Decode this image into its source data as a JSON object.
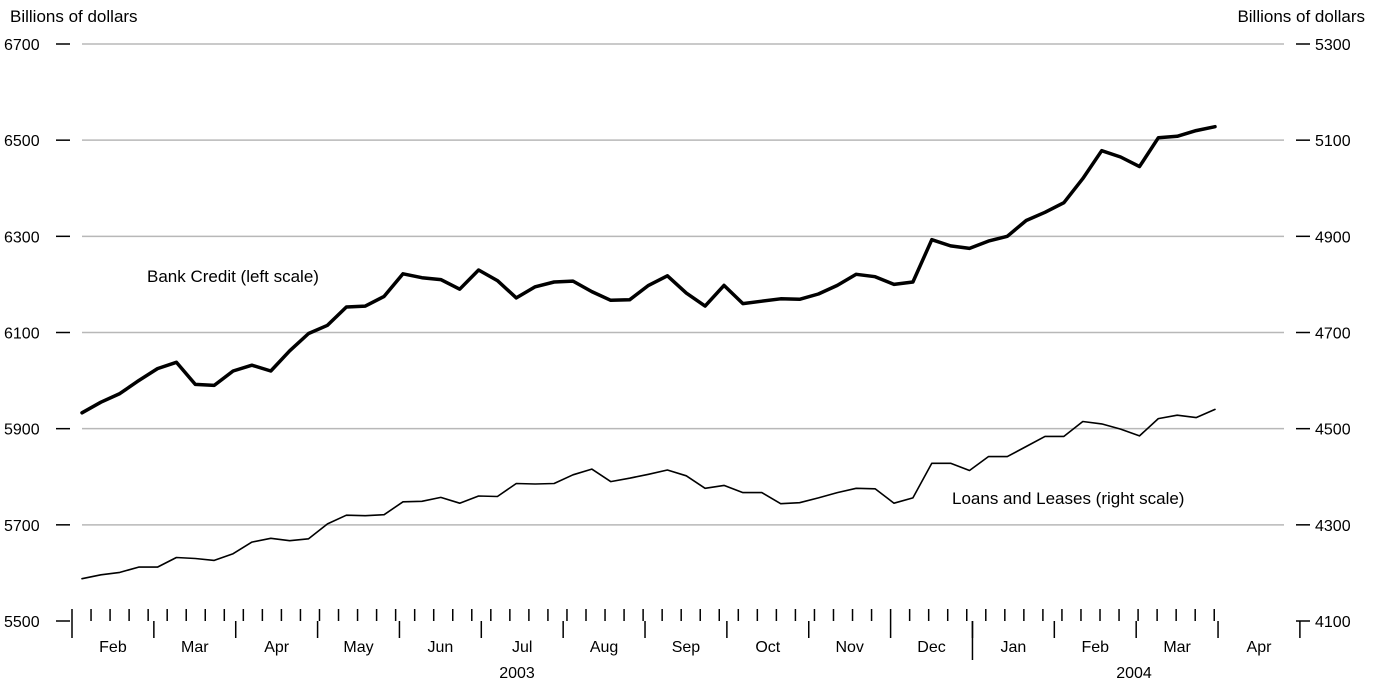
{
  "chart_data": {
    "type": "line",
    "left_axis": {
      "label": "Billions of dollars",
      "ylim": [
        5500,
        6700
      ],
      "ticks": [
        5500,
        5700,
        5900,
        6100,
        6300,
        6500,
        6700
      ]
    },
    "right_axis": {
      "label": "Billions of dollars",
      "ylim": [
        4100,
        5300
      ],
      "ticks": [
        4100,
        4300,
        4500,
        4700,
        4900,
        5100,
        5300
      ]
    },
    "grid": true,
    "months": [
      {
        "label": "Feb",
        "year": "2003"
      },
      {
        "label": "Mar",
        "year": "2003"
      },
      {
        "label": "Apr",
        "year": "2003"
      },
      {
        "label": "May",
        "year": "2003"
      },
      {
        "label": "Jun",
        "year": "2003"
      },
      {
        "label": "Jul",
        "year": "2003"
      },
      {
        "label": "Aug",
        "year": "2003"
      },
      {
        "label": "Sep",
        "year": "2003"
      },
      {
        "label": "Oct",
        "year": "2003"
      },
      {
        "label": "Nov",
        "year": "2003"
      },
      {
        "label": "Dec",
        "year": "2003"
      },
      {
        "label": "Jan",
        "year": "2004"
      },
      {
        "label": "Feb",
        "year": "2004"
      },
      {
        "label": "Mar",
        "year": "2004"
      },
      {
        "label": "Apr",
        "year": "2004"
      }
    ],
    "years": [
      "2003",
      "2004"
    ],
    "series": [
      {
        "name": "Bank Credit (left scale)",
        "axis": "left",
        "color": "#000000",
        "values": [
          5933,
          5955,
          5973,
          6000,
          6025,
          6038,
          5992,
          5990,
          6020,
          6032,
          6020,
          6062,
          6098,
          6115,
          6153,
          6155,
          6175,
          6222,
          6214,
          6210,
          6190,
          6230,
          6208,
          6172,
          6195,
          6205,
          6207,
          6185,
          6167,
          6168,
          6198,
          6218,
          6182,
          6155,
          6198,
          6160,
          6165,
          6170,
          6169,
          6180,
          6198,
          6221,
          6216,
          6200,
          6205,
          6293,
          6280,
          6275,
          6290,
          6300,
          6333,
          6350,
          6370,
          6420,
          6478,
          6465,
          6445,
          6505,
          6508,
          6520,
          6528
        ]
      },
      {
        "name": "Loans and Leases (right scale)",
        "axis": "right",
        "color": "#000000",
        "values": [
          4188,
          4196,
          4201,
          4212,
          4212,
          4232,
          4230,
          4226,
          4240,
          4264,
          4272,
          4267,
          4271,
          4302,
          4320,
          4319,
          4321,
          4348,
          4349,
          4357,
          4345,
          4360,
          4359,
          4386,
          4385,
          4386,
          4404,
          4416,
          4390,
          4397,
          4405,
          4414,
          4402,
          4376,
          4382,
          4367,
          4367,
          4344,
          4346,
          4356,
          4367,
          4376,
          4375,
          4345,
          4356,
          4428,
          4428,
          4413,
          4442,
          4442,
          4463,
          4484,
          4484,
          4515,
          4510,
          4499,
          4485,
          4521,
          4528,
          4523,
          4540
        ]
      }
    ],
    "annotations": [
      {
        "text": "Bank Credit (left scale)",
        "series": 0
      },
      {
        "text": "Loans and Leases (right scale)",
        "series": 1
      }
    ]
  }
}
